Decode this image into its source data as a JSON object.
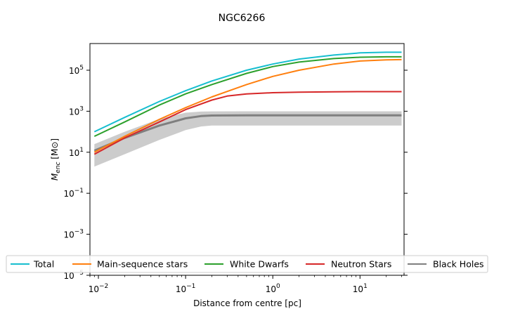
{
  "chart_data": {
    "type": "line",
    "title": "NGC6266",
    "xlabel": "Distance from centre [pc]",
    "ylabel": "M_enc [M⊙]",
    "ylabel_main": "M",
    "ylabel_sub": "enc",
    "ylabel_unit": " [M⊙]",
    "x_scale": "log",
    "y_scale": "log",
    "xlim": [
      0.008,
      32
    ],
    "ylim": [
      1e-05,
      2000000
    ],
    "x_ticks": [
      {
        "value": 0.01,
        "base": "10",
        "exp": "−2"
      },
      {
        "value": 0.1,
        "base": "10",
        "exp": "−1"
      },
      {
        "value": 1,
        "base": "10",
        "exp": "0"
      },
      {
        "value": 10,
        "base": "10",
        "exp": "1"
      }
    ],
    "y_ticks": [
      {
        "value": 1e-05,
        "base": "10",
        "exp": "−5"
      },
      {
        "value": 0.001,
        "base": "10",
        "exp": "−3"
      },
      {
        "value": 0.1,
        "base": "10",
        "exp": "−1"
      },
      {
        "value": 10,
        "base": "10",
        "exp": "1"
      },
      {
        "value": 1000,
        "base": "10",
        "exp": "3"
      },
      {
        "value": 100000,
        "base": "10",
        "exp": "5"
      }
    ],
    "grid": false,
    "legend_position": "lower center",
    "series": [
      {
        "name": "Total",
        "color": "#17becf",
        "x": [
          0.009,
          0.02,
          0.05,
          0.1,
          0.2,
          0.5,
          1,
          2,
          5,
          10,
          20,
          30
        ],
        "y": [
          100,
          500,
          3000,
          10000,
          30000,
          100000,
          200000,
          350000,
          550000,
          700000,
          750000,
          750000
        ]
      },
      {
        "name": "Main-sequence stars",
        "color": "#ff7f0e",
        "x": [
          0.009,
          0.02,
          0.05,
          0.1,
          0.2,
          0.5,
          1,
          2,
          5,
          10,
          20,
          30
        ],
        "y": [
          10,
          60,
          400,
          1500,
          5000,
          20000,
          50000,
          100000,
          200000,
          280000,
          320000,
          330000
        ]
      },
      {
        "name": "White Dwarfs",
        "color": "#2ca02c",
        "x": [
          0.009,
          0.02,
          0.05,
          0.1,
          0.2,
          0.5,
          1,
          2,
          5,
          10,
          20,
          30
        ],
        "y": [
          60,
          300,
          2000,
          7000,
          20000,
          70000,
          150000,
          250000,
          370000,
          430000,
          450000,
          450000
        ]
      },
      {
        "name": "Neutron Stars",
        "color": "#d62728",
        "x": [
          0.009,
          0.02,
          0.05,
          0.1,
          0.2,
          0.3,
          0.5,
          1,
          2,
          5,
          10,
          30
        ],
        "y": [
          8,
          50,
          300,
          1200,
          3500,
          5500,
          7000,
          8000,
          8500,
          8800,
          9000,
          9000
        ]
      },
      {
        "name": "Black Holes",
        "color": "#7f7f7f",
        "x": [
          0.009,
          0.02,
          0.05,
          0.1,
          0.15,
          0.2,
          0.5,
          1,
          5,
          30
        ],
        "y": [
          12,
          50,
          200,
          450,
          580,
          620,
          630,
          630,
          630,
          630
        ],
        "band_lower": [
          2,
          8,
          40,
          120,
          180,
          200,
          200,
          200,
          200,
          200
        ],
        "band_upper": [
          25,
          100,
          420,
          850,
          960,
          980,
          990,
          990,
          990,
          990
        ]
      }
    ]
  }
}
